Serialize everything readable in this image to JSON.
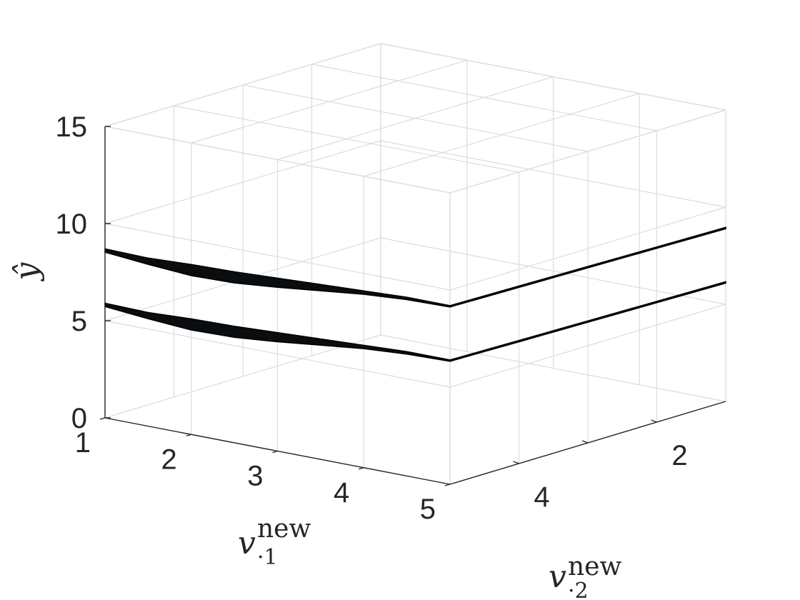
{
  "chart_data": {
    "type": "surface",
    "view": "3d",
    "grid": true,
    "axes": {
      "x": {
        "label_main": "v",
        "label_sub": "·1",
        "label_sup": "new",
        "ticks": [
          1,
          2,
          3,
          4,
          5
        ],
        "tick_labels": [
          "1",
          "2",
          "3",
          "4",
          "5"
        ],
        "range": [
          1,
          5
        ]
      },
      "y": {
        "label_main": "v",
        "label_sub": "·2",
        "label_sup": "new",
        "ticks": [
          2,
          4
        ],
        "tick_labels": [
          "2",
          "4"
        ],
        "range": [
          1,
          5
        ]
      },
      "z": {
        "label": "ŷ",
        "ticks": [
          0,
          5,
          10,
          15
        ],
        "tick_labels": [
          "0",
          "5",
          "10",
          "15"
        ],
        "range": [
          0,
          15
        ]
      }
    },
    "series": [
      {
        "v1": [
          1,
          1.5,
          2,
          2.5,
          3,
          3.5,
          4,
          4.5,
          5
        ],
        "y_upper": [
          8.7,
          8.65,
          8.75,
          8.8,
          8.9,
          9.0,
          9.1,
          9.2,
          9.2
        ],
        "y_lower": [
          8.6,
          8.4,
          8.25,
          8.3,
          8.5,
          8.75,
          9.0,
          9.15,
          9.2
        ]
      },
      {
        "v1": [
          1,
          1.5,
          2,
          2.5,
          3,
          3.5,
          4,
          4.5,
          5
        ],
        "y_upper": [
          5.9,
          5.85,
          5.95,
          6.0,
          6.1,
          6.2,
          6.3,
          6.4,
          6.4
        ],
        "y_lower": [
          5.8,
          5.6,
          5.45,
          5.5,
          5.7,
          5.95,
          6.2,
          6.35,
          6.4
        ]
      }
    ]
  }
}
